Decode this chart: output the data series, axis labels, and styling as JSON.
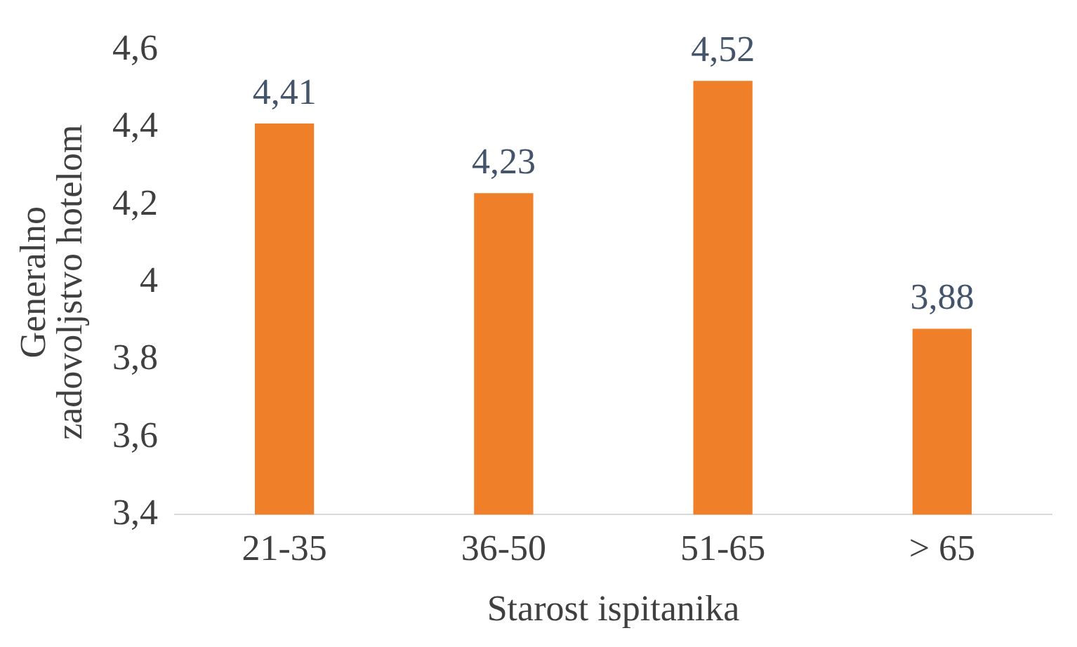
{
  "chart_data": {
    "type": "bar",
    "xlabel": "Starost ispitanika",
    "ylabel": "Generalno zadovoljstvo hotelom",
    "categories": [
      "21-35",
      "36-50",
      "51-65",
      "> 65"
    ],
    "values": [
      4.41,
      4.23,
      4.52,
      3.88
    ],
    "value_labels": [
      "4,41",
      "4,23",
      "4,52",
      "3,88"
    ],
    "color": "#f07f2a",
    "ylim": [
      3.4,
      4.6
    ],
    "yticks": [
      {
        "value": 3.4,
        "label": "3,4"
      },
      {
        "value": 3.6,
        "label": "3,6"
      },
      {
        "value": 3.8,
        "label": "3,8"
      },
      4,
      {
        "value": 4.2,
        "label": "4,2"
      },
      {
        "value": 4.4,
        "label": "4,4"
      },
      {
        "value": 4.6,
        "label": "4,6"
      }
    ],
    "grid": false,
    "legend": false
  }
}
